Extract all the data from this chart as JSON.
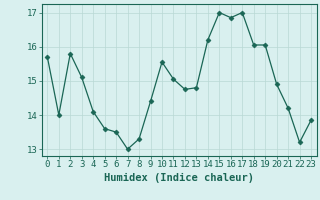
{
  "x": [
    0,
    1,
    2,
    3,
    4,
    5,
    6,
    7,
    8,
    9,
    10,
    11,
    12,
    13,
    14,
    15,
    16,
    17,
    18,
    19,
    20,
    21,
    22,
    23
  ],
  "y": [
    15.7,
    14.0,
    15.8,
    15.1,
    14.1,
    13.6,
    13.5,
    13.0,
    13.3,
    14.4,
    15.55,
    15.05,
    14.75,
    14.8,
    16.2,
    17.0,
    16.85,
    17.0,
    16.05,
    16.05,
    14.9,
    14.2,
    13.2,
    13.85
  ],
  "line_color": "#1a6655",
  "marker": "D",
  "marker_size": 2.5,
  "bg_color": "#d9f0ef",
  "grid_color": "#b8d8d4",
  "xlabel": "Humidex (Indice chaleur)",
  "ylim": [
    12.8,
    17.25
  ],
  "yticks": [
    13,
    14,
    15,
    16,
    17
  ],
  "xticks": [
    0,
    1,
    2,
    3,
    4,
    5,
    6,
    7,
    8,
    9,
    10,
    11,
    12,
    13,
    14,
    15,
    16,
    17,
    18,
    19,
    20,
    21,
    22,
    23
  ],
  "axis_color": "#1a6655",
  "font_color": "#1a6655",
  "xlabel_fontsize": 7.5,
  "tick_fontsize": 6.5
}
